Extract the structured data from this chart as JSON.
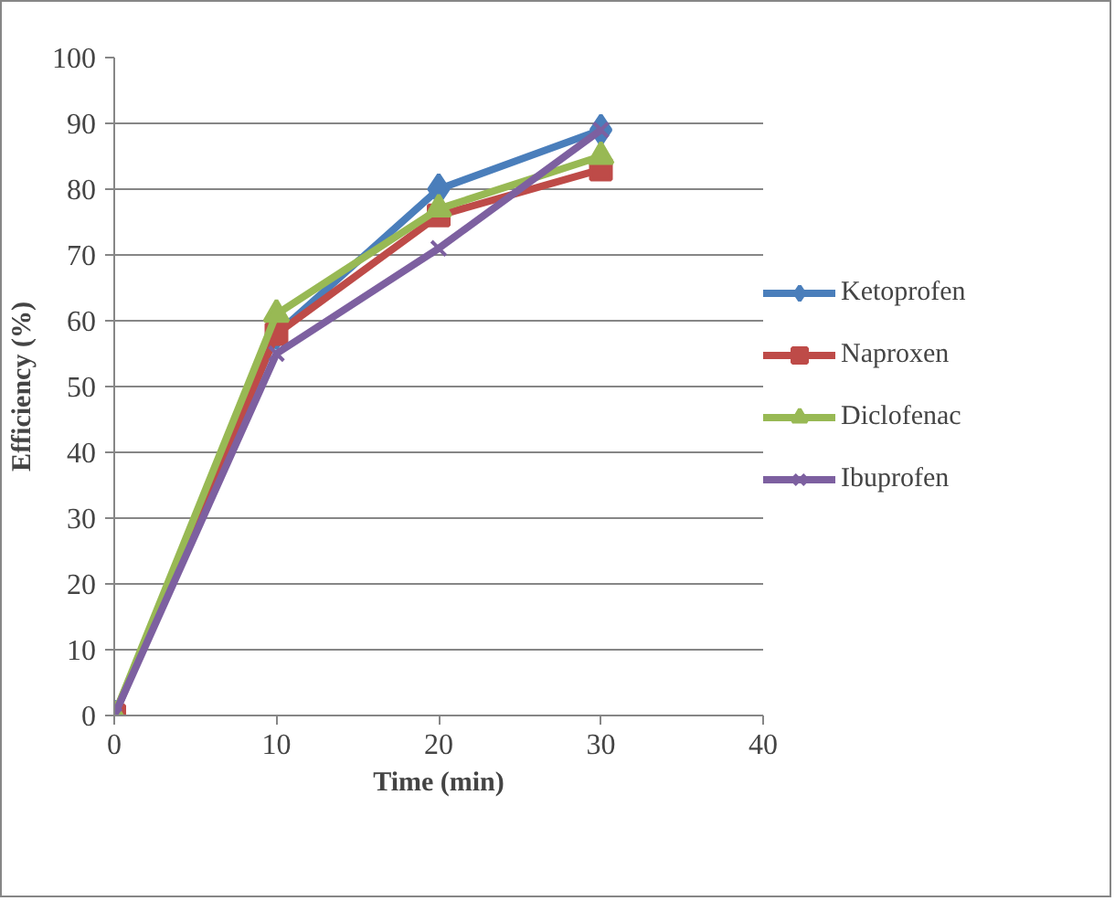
{
  "chart_data": {
    "type": "line",
    "xlabel": "Time (min)",
    "ylabel": "Efficiency (%)",
    "x": [
      0,
      10,
      20,
      30
    ],
    "series": [
      {
        "name": "Ketoprofen",
        "color": "#4a7ebb",
        "marker": "diamond",
        "values": [
          0,
          58,
          80,
          89
        ]
      },
      {
        "name": "Naproxen",
        "color": "#be4b48",
        "marker": "square",
        "values": [
          0,
          58,
          76,
          83
        ]
      },
      {
        "name": "Diclofenac",
        "color": "#98b954",
        "marker": "triangle",
        "values": [
          0,
          61,
          77,
          85
        ]
      },
      {
        "name": "Ibuprofen",
        "color": "#7d60a0",
        "marker": "cross",
        "values": [
          0,
          55,
          71,
          89
        ]
      }
    ],
    "xlim": [
      0,
      40
    ],
    "xticks": [
      0,
      10,
      20,
      30,
      40
    ],
    "ylim": [
      0,
      100
    ],
    "yticks": [
      0,
      10,
      20,
      30,
      40,
      50,
      60,
      70,
      80,
      90,
      100
    ],
    "grid": "y",
    "legend": "right"
  }
}
